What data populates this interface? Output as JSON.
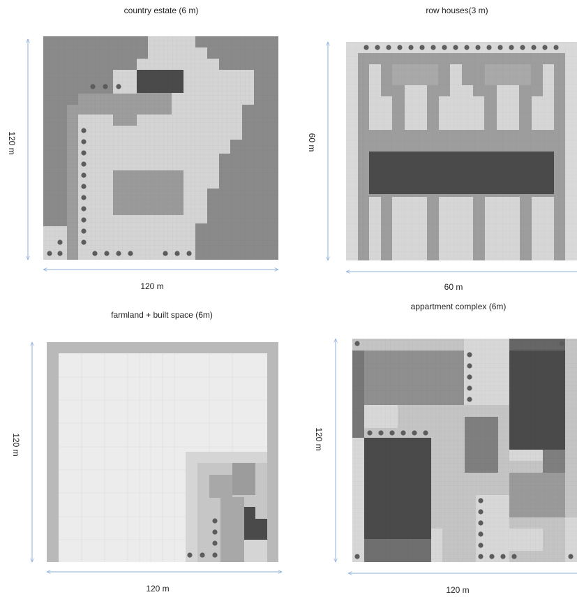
{
  "panels": [
    {
      "title": "country estate (6 m)",
      "width_label": "120 m",
      "height_label": "120 m"
    },
    {
      "title": "row houses(3 m)",
      "width_label": "60 m",
      "height_label": "60 m"
    },
    {
      "title": "farmland + built space (6m)",
      "width_label": "120 m",
      "height_label": "120 m"
    },
    {
      "title": "appartment complex (6m)",
      "width_label": "120 m",
      "height_label": "120 m"
    }
  ],
  "colors": {
    "dim_line": "#8fb0d8",
    "tree": "#5c5c5c",
    "dark": "#4a4a4a",
    "mid": "#8f8f8f",
    "light": "#d2d2d2",
    "pale": "#e8e8e8",
    "grass": "#8a8a8a"
  }
}
